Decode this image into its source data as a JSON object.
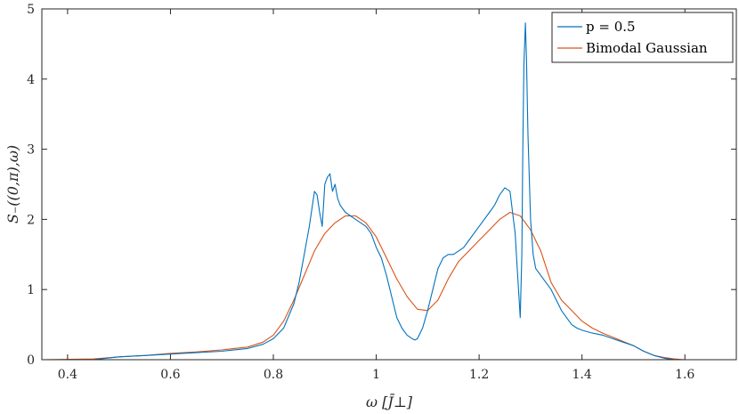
{
  "chart_data": {
    "type": "line",
    "title": "",
    "xlabel": "ω [J̄⊥]",
    "ylabel": "S₋((0,π),ω)",
    "xlim": [
      0.35,
      1.7
    ],
    "ylim": [
      0,
      5
    ],
    "xticks": [
      0.4,
      0.6,
      0.8,
      1,
      1.2,
      1.4,
      1.6
    ],
    "xtick_labels": [
      "0.4",
      "0.6",
      "0.8",
      "1",
      "1.2",
      "1.4",
      "1.6"
    ],
    "yticks": [
      0,
      1,
      2,
      3,
      4,
      5
    ],
    "ytick_labels": [
      "0",
      "1",
      "2",
      "3",
      "4",
      "5"
    ],
    "grid": false,
    "legend_position": "top-right",
    "series": [
      {
        "name": "p = 0.5",
        "color": "#0072BD",
        "x": [
          0.35,
          0.45,
          0.5,
          0.55,
          0.6,
          0.65,
          0.7,
          0.75,
          0.78,
          0.8,
          0.82,
          0.84,
          0.85,
          0.86,
          0.87,
          0.88,
          0.885,
          0.89,
          0.895,
          0.9,
          0.905,
          0.91,
          0.915,
          0.92,
          0.925,
          0.93,
          0.94,
          0.95,
          0.96,
          0.97,
          0.98,
          0.99,
          1.0,
          1.01,
          1.02,
          1.03,
          1.04,
          1.05,
          1.06,
          1.07,
          1.075,
          1.08,
          1.09,
          1.1,
          1.11,
          1.12,
          1.13,
          1.14,
          1.15,
          1.16,
          1.17,
          1.18,
          1.19,
          1.2,
          1.21,
          1.22,
          1.23,
          1.24,
          1.25,
          1.26,
          1.27,
          1.275,
          1.28,
          1.283,
          1.285,
          1.287,
          1.29,
          1.292,
          1.295,
          1.298,
          1.3,
          1.305,
          1.31,
          1.32,
          1.33,
          1.34,
          1.35,
          1.36,
          1.37,
          1.38,
          1.39,
          1.4,
          1.42,
          1.44,
          1.46,
          1.48,
          1.5,
          1.52,
          1.54,
          1.56,
          1.58,
          1.6,
          1.7
        ],
        "y": [
          0,
          0,
          0.04,
          0.06,
          0.08,
          0.1,
          0.12,
          0.16,
          0.22,
          0.3,
          0.45,
          0.8,
          1.1,
          1.5,
          1.9,
          2.4,
          2.35,
          2.1,
          1.9,
          2.5,
          2.6,
          2.65,
          2.4,
          2.5,
          2.3,
          2.2,
          2.1,
          2.05,
          2.0,
          1.95,
          1.9,
          1.8,
          1.6,
          1.45,
          1.2,
          0.9,
          0.6,
          0.45,
          0.35,
          0.3,
          0.28,
          0.3,
          0.45,
          0.7,
          1.0,
          1.3,
          1.45,
          1.5,
          1.5,
          1.55,
          1.6,
          1.7,
          1.8,
          1.9,
          2.0,
          2.1,
          2.2,
          2.35,
          2.45,
          2.4,
          1.8,
          1.2,
          0.6,
          1.5,
          3.0,
          4.2,
          4.8,
          4.3,
          3.2,
          2.5,
          2.0,
          1.5,
          1.3,
          1.2,
          1.1,
          1.0,
          0.85,
          0.7,
          0.6,
          0.5,
          0.45,
          0.42,
          0.38,
          0.35,
          0.3,
          0.25,
          0.2,
          0.12,
          0.06,
          0.02,
          0.0,
          0,
          0
        ]
      },
      {
        "name": "Bimodal Gaussian",
        "color": "#D95319",
        "x": [
          0.35,
          0.45,
          0.5,
          0.55,
          0.6,
          0.65,
          0.7,
          0.75,
          0.78,
          0.8,
          0.82,
          0.84,
          0.86,
          0.88,
          0.9,
          0.92,
          0.94,
          0.96,
          0.98,
          1.0,
          1.02,
          1.04,
          1.06,
          1.08,
          1.1,
          1.12,
          1.14,
          1.16,
          1.18,
          1.2,
          1.22,
          1.24,
          1.26,
          1.28,
          1.3,
          1.32,
          1.34,
          1.36,
          1.38,
          1.4,
          1.42,
          1.44,
          1.46,
          1.48,
          1.5,
          1.52,
          1.54,
          1.56,
          1.58,
          1.6,
          1.7
        ],
        "y": [
          0,
          0.01,
          0.04,
          0.06,
          0.09,
          0.11,
          0.14,
          0.18,
          0.25,
          0.35,
          0.55,
          0.85,
          1.2,
          1.55,
          1.8,
          1.95,
          2.05,
          2.05,
          1.95,
          1.75,
          1.45,
          1.15,
          0.9,
          0.72,
          0.7,
          0.85,
          1.15,
          1.4,
          1.55,
          1.7,
          1.85,
          2.0,
          2.1,
          2.05,
          1.85,
          1.55,
          1.1,
          0.85,
          0.7,
          0.55,
          0.45,
          0.38,
          0.32,
          0.26,
          0.2,
          0.12,
          0.06,
          0.03,
          0.01,
          0,
          0
        ]
      }
    ]
  }
}
